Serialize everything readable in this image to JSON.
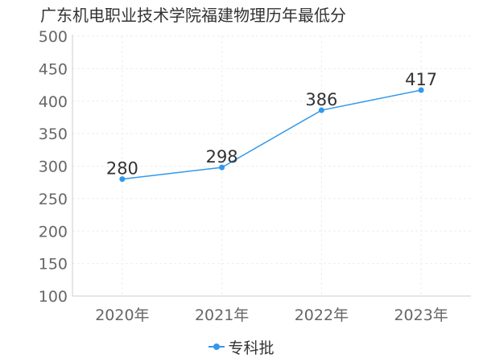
{
  "chart_data": {
    "type": "line",
    "title": "广东机电职业技术学院福建物理历年最低分",
    "categories": [
      "2020年",
      "2021年",
      "2022年",
      "2023年"
    ],
    "series": [
      {
        "name": "专科批",
        "values": [
          280,
          298,
          386,
          417
        ],
        "color": "#3398ec"
      }
    ],
    "ylim": [
      100,
      500
    ],
    "yticks": [
      100,
      150,
      200,
      250,
      300,
      350,
      400,
      450,
      500
    ],
    "xlabel": "",
    "ylabel": "",
    "grid": true,
    "legend_position": "bottom-center"
  }
}
